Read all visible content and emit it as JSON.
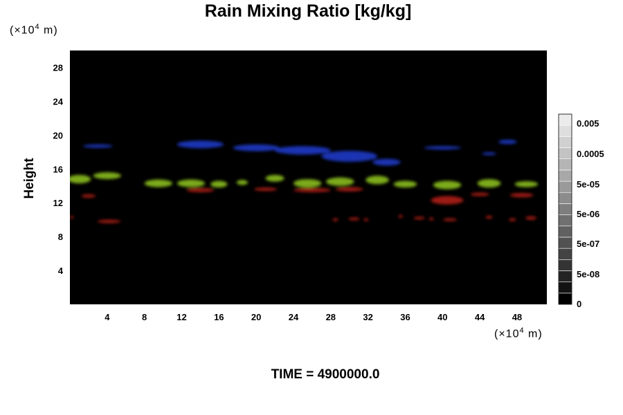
{
  "chart_data": {
    "type": "heatmap",
    "title": "Rain Mixing Ratio [kg/kg]",
    "ylabel": "Height",
    "xlabel": "",
    "x_unit": {
      "prefix": "(×10",
      "exp": "4",
      "suffix": " m)"
    },
    "y_unit": {
      "prefix": "(×10",
      "exp": "4",
      "suffix": " m)"
    },
    "xlim": [
      0,
      51.2
    ],
    "ylim": [
      0,
      30
    ],
    "x_ticks": [
      4,
      8,
      12,
      16,
      20,
      24,
      28,
      32,
      36,
      40,
      44,
      48
    ],
    "y_ticks": [
      4,
      8,
      12,
      16,
      20,
      24,
      28
    ],
    "background_color": "#000000",
    "colorbar": {
      "labels": [
        "0.005",
        "0.0005",
        "5e-05",
        "5e-06",
        "5e-07",
        "5e-08",
        "0"
      ],
      "levels": 17
    },
    "layers": [
      {
        "color": "#1e3cd2",
        "regions": [
          [
            3,
            18.7,
            3.2,
            0.4
          ],
          [
            14,
            18.9,
            5.0,
            0.9
          ],
          [
            20,
            18.5,
            5.0,
            0.8
          ],
          [
            25,
            18.2,
            6.0,
            1.0
          ],
          [
            30,
            17.5,
            6.0,
            1.3
          ],
          [
            34,
            16.8,
            3.0,
            0.8
          ],
          [
            40,
            18.5,
            4.0,
            0.4
          ],
          [
            47,
            19.2,
            2.0,
            0.5
          ],
          [
            45,
            17.8,
            1.5,
            0.3
          ]
        ]
      },
      {
        "color": "#92c81e",
        "regions": [
          [
            1.0,
            14.8,
            2.5,
            1.0
          ],
          [
            4.0,
            15.2,
            3.0,
            0.8
          ],
          [
            9.5,
            14.3,
            3.0,
            0.9
          ],
          [
            13.0,
            14.3,
            3.0,
            0.9
          ],
          [
            16.0,
            14.2,
            1.8,
            0.8
          ],
          [
            18.5,
            14.4,
            1.2,
            0.6
          ],
          [
            22.0,
            14.9,
            2.0,
            0.8
          ],
          [
            25.5,
            14.3,
            3.0,
            1.0
          ],
          [
            29.0,
            14.5,
            3.0,
            1.0
          ],
          [
            33.0,
            14.7,
            2.5,
            1.0
          ],
          [
            36.0,
            14.2,
            2.5,
            0.8
          ],
          [
            40.5,
            14.1,
            3.0,
            1.0
          ],
          [
            45.0,
            14.3,
            2.5,
            1.0
          ],
          [
            49.0,
            14.2,
            2.5,
            0.7
          ]
        ]
      },
      {
        "color": "#b91e19",
        "regions": [
          [
            2.0,
            12.8,
            1.5,
            0.4
          ],
          [
            4.2,
            9.8,
            2.5,
            0.4
          ],
          [
            0.2,
            10.3,
            0.4,
            0.3
          ],
          [
            14.0,
            13.5,
            3.0,
            0.5
          ],
          [
            21.0,
            13.6,
            2.5,
            0.4
          ],
          [
            26.0,
            13.5,
            4.0,
            0.5
          ],
          [
            30.0,
            13.6,
            3.0,
            0.5
          ],
          [
            40.5,
            12.3,
            3.5,
            1.0
          ],
          [
            44.0,
            13.0,
            2.0,
            0.4
          ],
          [
            48.5,
            12.9,
            2.5,
            0.5
          ],
          [
            28.5,
            10.0,
            0.6,
            0.3
          ],
          [
            30.5,
            10.1,
            1.2,
            0.3
          ],
          [
            31.8,
            10.0,
            0.5,
            0.2
          ],
          [
            35.5,
            10.4,
            0.5,
            0.2
          ],
          [
            37.5,
            10.2,
            1.2,
            0.3
          ],
          [
            38.8,
            10.1,
            0.5,
            0.2
          ],
          [
            40.8,
            10.0,
            1.5,
            0.3
          ],
          [
            45.0,
            10.3,
            0.8,
            0.3
          ],
          [
            47.5,
            10.0,
            0.8,
            0.3
          ],
          [
            49.5,
            10.2,
            1.2,
            0.4
          ]
        ]
      }
    ]
  },
  "footer": {
    "time_label": "TIME = 4900000.0"
  }
}
